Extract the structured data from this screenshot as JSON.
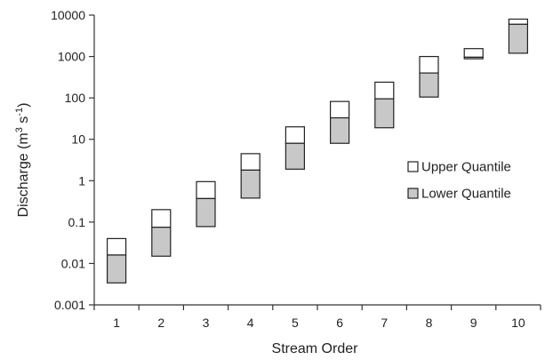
{
  "chart_data": {
    "type": "bar",
    "subtype": "stacked-box-log",
    "title": "",
    "xlabel": "Stream Order",
    "ylabel_main": "Discharge (m",
    "ylabel_sup1": "3",
    "ylabel_mid": " s",
    "ylabel_sup2": "-1",
    "ylabel_end": ")",
    "yscale": "log",
    "ylim": [
      0.001,
      10000
    ],
    "y_ticks": [
      "0.001",
      "0.01",
      "0.1",
      "1",
      "10",
      "100",
      "1000",
      "10000"
    ],
    "categories": [
      "1",
      "2",
      "3",
      "4",
      "5",
      "6",
      "7",
      "8",
      "9",
      "10"
    ],
    "lower_start": [
      0.0034,
      0.015,
      0.078,
      0.38,
      1.9,
      8,
      19,
      105,
      880,
      1200
    ],
    "median": [
      0.016,
      0.075,
      0.37,
      1.8,
      8,
      33,
      95,
      400,
      960,
      6000
    ],
    "upper_end": [
      0.04,
      0.2,
      0.95,
      4.5,
      20,
      82,
      240,
      1000,
      1550,
      8000
    ],
    "series": [
      {
        "name": "Upper Quantile",
        "color": "#ffffff"
      },
      {
        "name": "Lower Quantile",
        "color": "#c8c8c8"
      }
    ],
    "legend_position": "right",
    "grid": false
  }
}
